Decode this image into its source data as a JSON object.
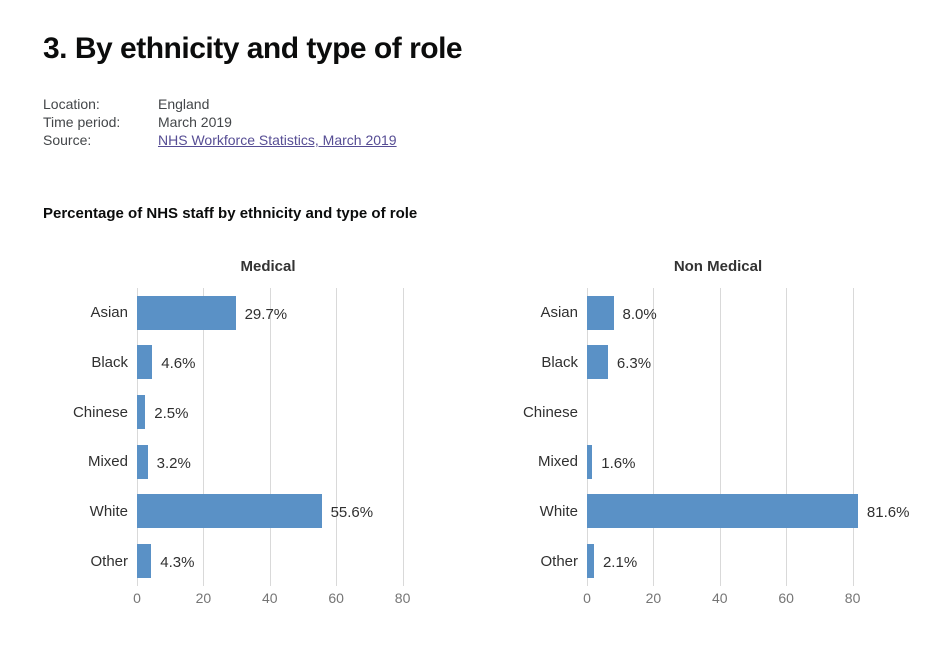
{
  "page": {
    "title": "3. By ethnicity and type of role"
  },
  "metadata": {
    "location_label": "Location:",
    "location_value": "England",
    "time_period_label": "Time period:",
    "time_period_value": "March 2019",
    "source_label": "Source:",
    "source_link_text": "NHS Workforce Statistics, March 2019"
  },
  "chart_heading": "Percentage of NHS staff by ethnicity and type of role",
  "colors": {
    "bar": "#5a91c6",
    "gridline": "#d9d9d9",
    "tick_text": "#757575",
    "link": "#564d94",
    "heading_text": "#0b0c0c"
  },
  "chart_data": [
    {
      "type": "bar",
      "orientation": "horizontal",
      "title": "Medical",
      "categories": [
        "Asian",
        "Black",
        "Chinese",
        "Mixed",
        "White",
        "Other"
      ],
      "values": [
        29.7,
        4.6,
        2.5,
        3.2,
        55.6,
        4.3
      ],
      "value_labels": [
        "29.7%",
        "4.6%",
        "2.5%",
        "3.2%",
        "55.6%",
        "4.3%"
      ],
      "xticks": [
        0,
        20,
        40,
        60,
        80
      ],
      "xlim": [
        0,
        91
      ],
      "unit": "%",
      "grid": true,
      "legend": "none"
    },
    {
      "type": "bar",
      "orientation": "horizontal",
      "title": "Non Medical",
      "categories": [
        "Asian",
        "Black",
        "Chinese",
        "Mixed",
        "White",
        "Other"
      ],
      "values": [
        8.0,
        6.3,
        null,
        1.6,
        81.6,
        2.1
      ],
      "value_labels": [
        "8.0%",
        "6.3%",
        "",
        "1.6%",
        "81.6%",
        "2.1%"
      ],
      "xticks": [
        0,
        20,
        40,
        60,
        80
      ],
      "xlim": [
        0,
        107
      ],
      "unit": "%",
      "grid": true,
      "legend": "none"
    }
  ]
}
